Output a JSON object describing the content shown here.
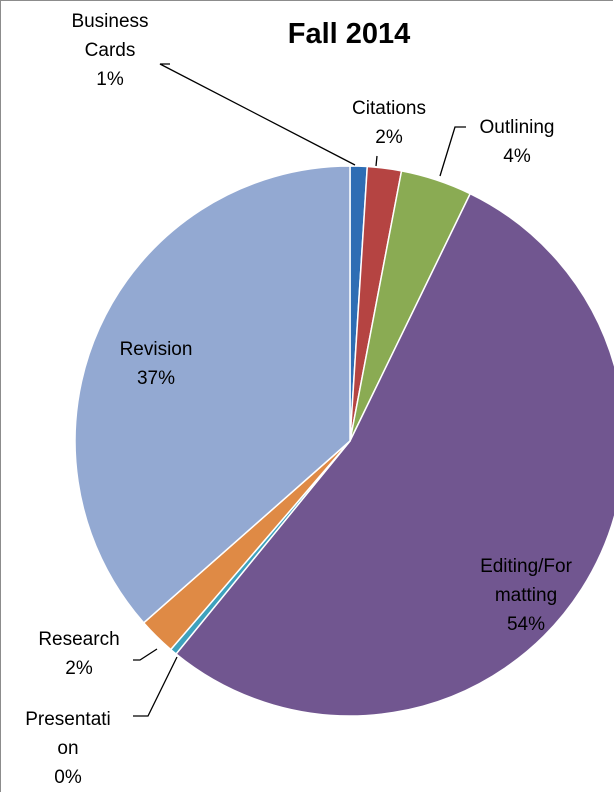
{
  "chart_data": {
    "type": "pie",
    "title": "Fall 2014",
    "slices": [
      {
        "label": "Business Cards",
        "label_lines": [
          "Business",
          "Cards"
        ],
        "percent_text": "1%",
        "value": 1.0,
        "color": "#2e6db4"
      },
      {
        "label": "Citations",
        "label_lines": [
          "Citations"
        ],
        "percent_text": "2%",
        "value": 2.0,
        "color": "#b54442"
      },
      {
        "label": "Outlining",
        "label_lines": [
          "Outlining"
        ],
        "percent_text": "4%",
        "value": 4.2,
        "color": "#8aab53"
      },
      {
        "label": "Editing/Formatting",
        "label_lines": [
          "Editing/For",
          "matting"
        ],
        "percent_text": "54%",
        "value": 53.7,
        "color": "#715690"
      },
      {
        "label": "Presentation",
        "label_lines": [
          "Presentati",
          "on"
        ],
        "percent_text": "0%",
        "value": 0.4,
        "color": "#3ea2bd"
      },
      {
        "label": "Research",
        "label_lines": [
          "Research"
        ],
        "percent_text": "2%",
        "value": 2.2,
        "color": "#df8a45"
      },
      {
        "label": "Revision",
        "label_lines": [
          "Revision"
        ],
        "percent_text": "37%",
        "value": 36.5,
        "color": "#93a9d2"
      }
    ],
    "start_angle_deg": 0,
    "direction": "clockwise",
    "legend": "none",
    "slice_border_color": "#ffffff"
  }
}
